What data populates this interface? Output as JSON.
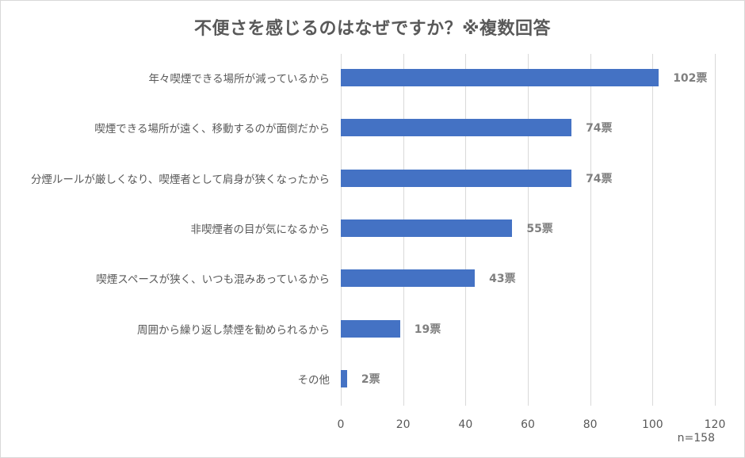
{
  "chart_data": {
    "type": "bar",
    "orientation": "horizontal",
    "title": "不便さを感じるのはなぜですか？※複数回答",
    "categories": [
      "年々喫煙できる場所が減っているから",
      "喫煙できる場所が遠く、移動するのが面倒だから",
      "分煙ルールが厳しくなり、喫煙者として肩身が狭くなったから",
      "非喫煙者の目が気になるから",
      "喫煙スペースが狭く、いつも混みあっているから",
      "周囲から繰り返し禁煙を勧められるから",
      "その他"
    ],
    "values": [
      102,
      74,
      74,
      55,
      43,
      19,
      2
    ],
    "data_labels": [
      "102票",
      "74票",
      "74票",
      "55票",
      "43票",
      "19票",
      "2票"
    ],
    "xlabel": "",
    "ylabel": "",
    "xlim": [
      0,
      120
    ],
    "xticks": [
      "0",
      "20",
      "40",
      "60",
      "80",
      "100",
      "120"
    ],
    "grid": true,
    "legend": null,
    "annotation": "n=158",
    "bar_color": "#4472c4"
  },
  "title": "不便さを感じるのはなぜですか？※複数回答",
  "note": "n=158"
}
